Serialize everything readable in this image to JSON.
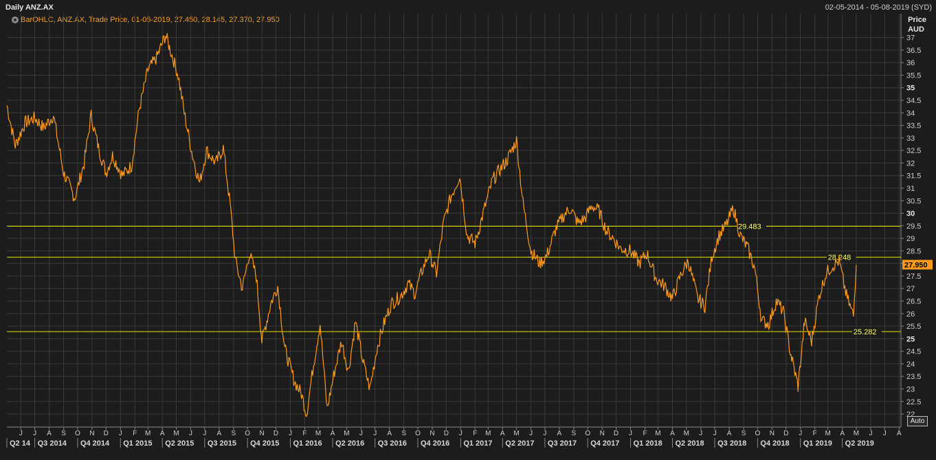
{
  "header": {
    "title": "Daily ANZ.AX",
    "date_range": "02-05-2014 - 05-08-2019 (SYD)"
  },
  "legend": {
    "text": "BarOHLC, ANZ.AX, Trade Price, 01-05-2019, 27.450, 28.145, 27.370, 27.950"
  },
  "axis": {
    "price_label_1": "Price",
    "price_label_2": "AUD",
    "auto_label": "Auto"
  },
  "colors": {
    "price_line": "#ff9a1a",
    "hlines": "#e6e600",
    "last_price_bg": "#ff9a1a",
    "background": "#1c1c1c",
    "grid": "#3a3a3a"
  },
  "chart_data": {
    "type": "line",
    "title": "Daily ANZ.AX",
    "ylabel": "Price AUD",
    "ylim": [
      21.7,
      37.4
    ],
    "y_ticks": [
      "22",
      "22.5",
      "23",
      "23.5",
      "24",
      "24.5",
      "25",
      "25.5",
      "26",
      "26.5",
      "27",
      "27.5",
      "28",
      "28.5",
      "29",
      "29.5",
      "30",
      "30.5",
      "31",
      "31.5",
      "32",
      "32.5",
      "33",
      "33.5",
      "34",
      "34.5",
      "35",
      "35.5",
      "36",
      "36.5",
      "37"
    ],
    "x_month_ticks": [
      "J",
      "J",
      "A",
      "S",
      "O",
      "N",
      "D",
      "J",
      "F",
      "M",
      "A",
      "M",
      "J",
      "J",
      "A",
      "S",
      "O",
      "N",
      "D",
      "J",
      "F",
      "M",
      "A",
      "M",
      "J",
      "J",
      "A",
      "S",
      "O",
      "N",
      "D",
      "J",
      "F",
      "M",
      "A",
      "M",
      "J",
      "J",
      "A",
      "S",
      "O",
      "N",
      "D",
      "J",
      "F",
      "M",
      "A",
      "M",
      "J",
      "J",
      "A",
      "S",
      "O",
      "N",
      "D",
      "J",
      "F",
      "M",
      "A",
      "M",
      "J",
      "J",
      "A"
    ],
    "x_quarter_ticks": [
      "Q2 14",
      "Q3 2014",
      "Q4 2014",
      "Q1 2015",
      "Q2 2015",
      "Q3 2015",
      "Q4 2015",
      "Q1 2016",
      "Q2 2016",
      "Q3 2016",
      "Q4 2016",
      "Q1 2017",
      "Q2 2017",
      "Q3 2017",
      "Q4 2017",
      "Q1 2018",
      "Q2 2018",
      "Q3 2018",
      "Q4 2018",
      "Q1 2019",
      "Q2 2019"
    ],
    "horizontal_lines": [
      {
        "value": 29.483,
        "label": "29.483"
      },
      {
        "value": 28.248,
        "label": "28.248"
      },
      {
        "value": 25.282,
        "label": "25.282"
      }
    ],
    "last_price": "27.950",
    "series": [
      {
        "x": [
          "2014-05-02",
          "2014-05-20",
          "2014-06-10",
          "2014-07-01",
          "2014-07-20",
          "2014-08-10",
          "2014-09-01",
          "2014-09-25",
          "2014-10-15",
          "2014-10-30",
          "2014-11-15",
          "2014-12-01",
          "2014-12-15",
          "2015-01-05",
          "2015-01-25",
          "2015-02-10",
          "2015-03-01",
          "2015-03-20",
          "2015-04-08",
          "2015-04-20",
          "2015-05-05",
          "2015-05-20",
          "2015-06-05",
          "2015-06-20",
          "2015-07-05",
          "2015-07-25",
          "2015-08-10",
          "2015-08-25",
          "2015-09-05",
          "2015-09-20",
          "2015-10-05",
          "2015-10-20",
          "2015-11-01",
          "2015-11-20",
          "2015-12-05",
          "2015-12-20",
          "2016-01-10",
          "2016-01-25",
          "2016-02-05",
          "2016-02-20",
          "2016-03-05",
          "2016-03-20",
          "2016-04-05",
          "2016-04-20",
          "2016-05-05",
          "2016-05-20",
          "2016-06-05",
          "2016-06-20",
          "2016-07-05",
          "2016-07-20",
          "2016-08-05",
          "2016-08-25",
          "2016-09-10",
          "2016-09-25",
          "2016-10-10",
          "2016-10-25",
          "2016-11-10",
          "2016-11-25",
          "2016-12-10",
          "2016-12-30",
          "2017-01-15",
          "2017-02-01",
          "2017-02-20",
          "2017-03-10",
          "2017-03-25",
          "2017-04-10",
          "2017-05-01",
          "2017-05-15",
          "2017-06-01",
          "2017-06-20",
          "2017-07-05",
          "2017-07-25",
          "2017-08-10",
          "2017-08-25",
          "2017-09-10",
          "2017-09-25",
          "2017-10-10",
          "2017-10-25",
          "2017-11-10",
          "2017-11-25",
          "2017-12-10",
          "2018-01-01",
          "2018-01-20",
          "2018-02-05",
          "2018-02-25",
          "2018-03-15",
          "2018-04-01",
          "2018-04-20",
          "2018-05-05",
          "2018-05-25",
          "2018-06-10",
          "2018-06-25",
          "2018-07-10",
          "2018-07-25",
          "2018-08-10",
          "2018-08-25",
          "2018-09-10",
          "2018-09-25",
          "2018-10-10",
          "2018-10-25",
          "2018-11-10",
          "2018-11-25",
          "2018-12-10",
          "2018-12-27",
          "2019-01-10",
          "2019-01-25",
          "2019-02-10",
          "2019-02-25",
          "2019-03-10",
          "2019-03-25",
          "2019-04-10",
          "2019-04-25",
          "2019-05-01"
        ],
        "y": [
          34.3,
          32.7,
          33.6,
          33.8,
          33.4,
          33.9,
          31.6,
          30.6,
          32.0,
          33.9,
          32.6,
          31.6,
          32.3,
          31.5,
          31.9,
          34.1,
          35.7,
          36.2,
          37.1,
          36.4,
          35.5,
          33.8,
          32.3,
          31.2,
          32.5,
          32.0,
          32.6,
          30.3,
          28.1,
          27.0,
          28.4,
          27.5,
          24.9,
          26.4,
          27.1,
          24.6,
          23.3,
          22.8,
          22.0,
          24.0,
          25.6,
          22.2,
          23.7,
          24.9,
          23.7,
          25.7,
          24.1,
          23.0,
          24.6,
          25.6,
          26.4,
          26.7,
          27.2,
          26.8,
          27.7,
          28.4,
          27.6,
          29.6,
          30.6,
          31.5,
          29.1,
          28.8,
          30.1,
          31.3,
          31.7,
          32.1,
          32.9,
          30.4,
          28.5,
          28.0,
          28.3,
          29.4,
          29.9,
          30.2,
          29.6,
          29.8,
          30.3,
          30.1,
          29.3,
          29.0,
          28.6,
          28.5,
          28.0,
          28.4,
          27.4,
          27.1,
          26.6,
          27.6,
          28.1,
          26.6,
          26.3,
          28.3,
          29.1,
          29.5,
          30.2,
          29.1,
          28.6,
          27.8,
          25.7,
          25.6,
          26.5,
          26.1,
          24.5,
          23.1,
          25.7,
          24.9,
          26.7,
          27.6,
          27.9,
          28.1,
          26.7,
          25.9,
          27.95
        ]
      }
    ]
  }
}
